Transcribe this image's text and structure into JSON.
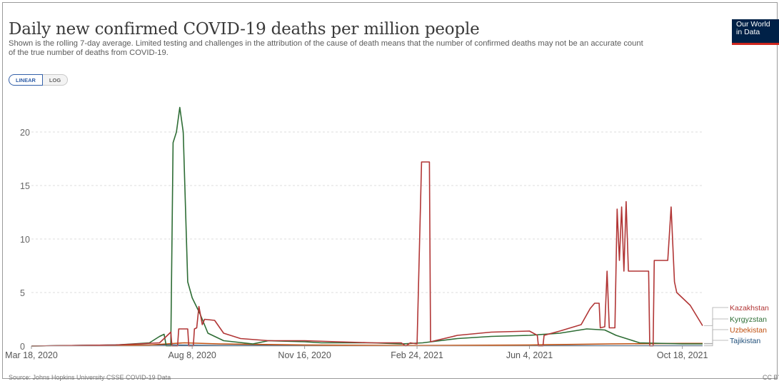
{
  "header": {
    "title": "Daily new confirmed COVID-19 deaths per million people",
    "subtitle": "Shown is the rolling 7-day average. Limited testing and challenges in the attribution of the cause of death means that the number of confirmed deaths may not be an accurate count of the true number of deaths from COVID-19.",
    "logo_line1": "Our World",
    "logo_line2": "in Data",
    "logo_bg": "#002147",
    "logo_accent": "#ce261e"
  },
  "toolbar": {
    "linear_label": "LINEAR",
    "log_label": "LOG",
    "active": "linear"
  },
  "footer": {
    "source": "Source: Johns Hopkins University CSSE COVID-19 Data",
    "license": "CC BY"
  },
  "chart_data": {
    "type": "line",
    "title": "Daily new confirmed COVID-19 deaths per million people",
    "xlabel": "",
    "ylabel": "",
    "x_range": [
      "2020-03-18",
      "2021-11-05"
    ],
    "ylim": [
      0,
      23
    ],
    "y_ticks": [
      0,
      5,
      10,
      15,
      20
    ],
    "x_ticks": [
      {
        "date": "2020-03-18",
        "label": "Mar 18, 2020"
      },
      {
        "date": "2020-08-08",
        "label": "Aug 8, 2020"
      },
      {
        "date": "2020-11-16",
        "label": "Nov 16, 2020"
      },
      {
        "date": "2021-02-24",
        "label": "Feb 24, 2021"
      },
      {
        "date": "2021-06-04",
        "label": "Jun 4, 2021"
      },
      {
        "date": "2021-10-18",
        "label": "Oct 18, 2021"
      }
    ],
    "grid": "horizontal-dotted",
    "legend": "right-end-labels",
    "series": [
      {
        "name": "Kazakhstan",
        "color": "#b13535",
        "points": [
          [
            "2020-03-18",
            0
          ],
          [
            "2020-06-01",
            0.1
          ],
          [
            "2020-07-10",
            0.3
          ],
          [
            "2020-07-20",
            1.3
          ],
          [
            "2020-07-21",
            0
          ],
          [
            "2020-07-26",
            0
          ],
          [
            "2020-07-27",
            1.6
          ],
          [
            "2020-08-04",
            1.6
          ],
          [
            "2020-08-05",
            0
          ],
          [
            "2020-08-09",
            0
          ],
          [
            "2020-08-10",
            1.6
          ],
          [
            "2020-08-12",
            1.7
          ],
          [
            "2020-08-14",
            3.7
          ],
          [
            "2020-08-17",
            2.0
          ],
          [
            "2020-08-19",
            2.5
          ],
          [
            "2020-08-28",
            2.4
          ],
          [
            "2020-09-05",
            1.2
          ],
          [
            "2020-09-20",
            0.7
          ],
          [
            "2020-10-15",
            0.5
          ],
          [
            "2020-11-16",
            0.5
          ],
          [
            "2020-12-15",
            0.4
          ],
          [
            "2021-01-15",
            0.3
          ],
          [
            "2021-02-10",
            0.3
          ],
          [
            "2021-02-14",
            0
          ],
          [
            "2021-02-18",
            0.3
          ],
          [
            "2021-02-24",
            0.2
          ],
          [
            "2021-02-28",
            17.2
          ],
          [
            "2021-03-07",
            17.2
          ],
          [
            "2021-03-08",
            0.4
          ],
          [
            "2021-04-01",
            1.0
          ],
          [
            "2021-05-01",
            1.3
          ],
          [
            "2021-06-04",
            1.4
          ],
          [
            "2021-06-11",
            1.0
          ],
          [
            "2021-06-12",
            0
          ],
          [
            "2021-06-16",
            0
          ],
          [
            "2021-06-17",
            1.0
          ],
          [
            "2021-07-01",
            1.4
          ],
          [
            "2021-07-20",
            2.0
          ],
          [
            "2021-07-28",
            3.5
          ],
          [
            "2021-08-01",
            4.0
          ],
          [
            "2021-08-05",
            4.0
          ],
          [
            "2021-08-06",
            1.7
          ],
          [
            "2021-08-10",
            1.8
          ],
          [
            "2021-08-12",
            7.0
          ],
          [
            "2021-08-14",
            1.7
          ],
          [
            "2021-08-19",
            1.7
          ],
          [
            "2021-08-21",
            12.8
          ],
          [
            "2021-08-23",
            8.0
          ],
          [
            "2021-08-25",
            13.0
          ],
          [
            "2021-08-27",
            7.0
          ],
          [
            "2021-08-29",
            13.5
          ],
          [
            "2021-08-31",
            7.0
          ],
          [
            "2021-09-18",
            7.0
          ],
          [
            "2021-09-19",
            0
          ],
          [
            "2021-09-22",
            0
          ],
          [
            "2021-09-23",
            8.0
          ],
          [
            "2021-10-05",
            8.0
          ],
          [
            "2021-10-08",
            13.0
          ],
          [
            "2021-10-11",
            6.0
          ],
          [
            "2021-10-13",
            5.0
          ],
          [
            "2021-10-18",
            4.5
          ],
          [
            "2021-10-25",
            3.8
          ],
          [
            "2021-11-05",
            1.9
          ]
        ]
      },
      {
        "name": "Kyrgyzstan",
        "color": "#2e6d35",
        "points": [
          [
            "2020-03-18",
            0
          ],
          [
            "2020-06-01",
            0.1
          ],
          [
            "2020-07-01",
            0.3
          ],
          [
            "2020-07-10",
            0.9
          ],
          [
            "2020-07-14",
            1.1
          ],
          [
            "2020-07-16",
            0
          ],
          [
            "2020-07-20",
            0
          ],
          [
            "2020-07-22",
            19.0
          ],
          [
            "2020-07-25",
            20.0
          ],
          [
            "2020-07-28",
            22.3
          ],
          [
            "2020-07-31",
            20.0
          ],
          [
            "2020-08-04",
            6.0
          ],
          [
            "2020-08-08",
            4.5
          ],
          [
            "2020-08-15",
            3.0
          ],
          [
            "2020-08-22",
            1.2
          ],
          [
            "2020-09-05",
            0.5
          ],
          [
            "2020-10-01",
            0.2
          ],
          [
            "2020-10-15",
            0.5
          ],
          [
            "2020-11-16",
            0.4
          ],
          [
            "2020-12-01",
            0.3
          ],
          [
            "2021-01-15",
            0.3
          ],
          [
            "2021-02-10",
            0.2
          ],
          [
            "2021-03-01",
            0.3
          ],
          [
            "2021-04-01",
            0.7
          ],
          [
            "2021-05-01",
            0.9
          ],
          [
            "2021-06-04",
            1.0
          ],
          [
            "2021-07-01",
            1.2
          ],
          [
            "2021-07-25",
            1.6
          ],
          [
            "2021-08-10",
            1.5
          ],
          [
            "2021-08-20",
            1.0
          ],
          [
            "2021-09-01",
            0.6
          ],
          [
            "2021-09-10",
            0.3
          ],
          [
            "2021-10-18",
            0.2
          ],
          [
            "2021-11-05",
            0.2
          ]
        ]
      },
      {
        "name": "Uzbekistan",
        "color": "#c05010",
        "points": [
          [
            "2020-03-18",
            0
          ],
          [
            "2020-07-01",
            0.1
          ],
          [
            "2020-08-01",
            0.3
          ],
          [
            "2020-09-01",
            0.2
          ],
          [
            "2020-11-16",
            0.1
          ],
          [
            "2021-02-24",
            0.05
          ],
          [
            "2021-06-04",
            0.1
          ],
          [
            "2021-08-15",
            0.2
          ],
          [
            "2021-10-18",
            0.25
          ],
          [
            "2021-11-05",
            0.25
          ]
        ]
      },
      {
        "name": "Tajikistan",
        "color": "#1f4e79",
        "points": [
          [
            "2020-03-18",
            0
          ],
          [
            "2020-06-01",
            0.1
          ],
          [
            "2020-07-15",
            0.1
          ],
          [
            "2020-09-01",
            0.05
          ],
          [
            "2021-02-24",
            0.02
          ],
          [
            "2021-06-04",
            0.03
          ],
          [
            "2021-10-18",
            0.02
          ],
          [
            "2021-11-05",
            0.02
          ]
        ]
      }
    ]
  }
}
